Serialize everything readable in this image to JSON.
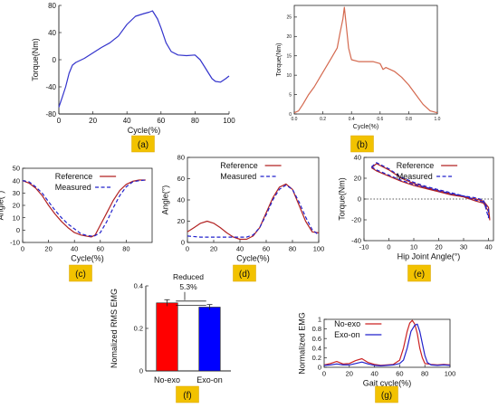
{
  "chart_data": [
    {
      "panel": "(a)",
      "type": "line",
      "xlabel": "Cycle(%)",
      "ylabel": "Torque(Nm)",
      "xlim": [
        0,
        100
      ],
      "ylim": [
        -80,
        80
      ],
      "xticks": [
        0,
        20,
        40,
        60,
        80,
        100
      ],
      "yticks": [
        -80,
        -40,
        0,
        40,
        80
      ],
      "series": [
        {
          "color": "#3333cc",
          "x": [
            0,
            2,
            4,
            6,
            8,
            10,
            15,
            20,
            25,
            30,
            35,
            40,
            45,
            50,
            53,
            55,
            56,
            58,
            60,
            63,
            66,
            70,
            75,
            80,
            83,
            86,
            88,
            90,
            92,
            95,
            98,
            100
          ],
          "y": [
            -70,
            -55,
            -40,
            -20,
            -8,
            -4,
            2,
            10,
            18,
            25,
            35,
            52,
            64,
            68,
            70,
            72,
            68,
            60,
            47,
            25,
            12,
            7,
            6,
            7,
            0,
            -12,
            -20,
            -28,
            -32,
            -33,
            -28,
            -24
          ]
        }
      ]
    },
    {
      "panel": "(b)",
      "type": "line",
      "xlabel": "Cycle(%)",
      "ylabel": "Torque(Nm)",
      "xlim": [
        0,
        1
      ],
      "ylim": [
        0,
        28
      ],
      "xticks": [
        "0.0",
        "0.2",
        "0.4",
        "0.6",
        "0.8",
        "1.0"
      ],
      "yticks": [
        0,
        5,
        10,
        15,
        20,
        25
      ],
      "series": [
        {
          "color": "#d4694f",
          "x": [
            0,
            0.03,
            0.06,
            0.1,
            0.14,
            0.18,
            0.22,
            0.26,
            0.3,
            0.32,
            0.34,
            0.35,
            0.36,
            0.38,
            0.4,
            0.45,
            0.5,
            0.55,
            0.6,
            0.62,
            0.64,
            0.7,
            0.75,
            0.8,
            0.85,
            0.9,
            0.95,
            1.0
          ],
          "y": [
            0.3,
            0.8,
            2.5,
            5,
            7,
            9.5,
            12,
            14.5,
            17,
            21,
            24.5,
            27.5,
            24,
            17,
            14,
            13.5,
            13.5,
            13.5,
            13,
            11.5,
            12,
            11,
            9.5,
            7.5,
            5,
            2.5,
            0.8,
            0.3
          ]
        }
      ]
    },
    {
      "panel": "(c)",
      "type": "line",
      "xlabel": "Cycle(%)",
      "ylabel": "Angle(°)",
      "xlim": [
        0,
        100
      ],
      "ylim": [
        -10,
        50
      ],
      "xticks": [
        0,
        20,
        40,
        60,
        80
      ],
      "yticks": [
        -10,
        0,
        10,
        20,
        30,
        40,
        50
      ],
      "series": [
        {
          "name": "Reference",
          "color": "#b22222",
          "dash": false,
          "x": [
            0,
            5,
            10,
            15,
            20,
            25,
            30,
            35,
            40,
            45,
            50,
            53,
            56,
            60,
            65,
            70,
            75,
            80,
            85,
            90,
            95
          ],
          "y": [
            40,
            38,
            34,
            28,
            20,
            13,
            7,
            2,
            -2,
            -4,
            -5,
            -5.5,
            -4,
            4,
            14,
            24,
            32,
            37,
            39.5,
            40.5,
            40.5
          ]
        },
        {
          "name": "Measured",
          "color": "#2222cc",
          "dash": true,
          "x": [
            0,
            5,
            10,
            15,
            20,
            25,
            30,
            35,
            40,
            45,
            50,
            55,
            60,
            65,
            70,
            75,
            80,
            85,
            90,
            95
          ],
          "y": [
            40,
            39,
            35,
            30,
            23,
            16,
            10,
            5,
            1,
            -3,
            -4.5,
            -5,
            -2,
            7,
            18,
            28,
            35,
            39,
            40,
            40.5
          ]
        }
      ]
    },
    {
      "panel": "(d)",
      "type": "line",
      "xlabel": "Cycle(%)",
      "ylabel": "Angle(°)",
      "xlim": [
        0,
        100
      ],
      "ylim": [
        0,
        80
      ],
      "xticks": [
        0,
        20,
        40,
        60,
        80,
        100
      ],
      "yticks": [
        0,
        20,
        40,
        60,
        80
      ],
      "series": [
        {
          "name": "Reference",
          "color": "#b22222",
          "dash": false,
          "x": [
            0,
            5,
            10,
            15,
            20,
            25,
            30,
            35,
            40,
            45,
            50,
            55,
            60,
            65,
            70,
            75,
            80,
            85,
            90,
            95,
            100
          ],
          "y": [
            10,
            14,
            18,
            20,
            18,
            14,
            9,
            5,
            3,
            3,
            6,
            14,
            28,
            42,
            52,
            55,
            50,
            35,
            20,
            10,
            9
          ]
        },
        {
          "name": "Measured",
          "color": "#2222cc",
          "dash": true,
          "x": [
            0,
            10,
            20,
            30,
            40,
            45,
            50,
            55,
            60,
            65,
            70,
            75,
            80,
            85,
            90,
            95,
            100
          ],
          "y": [
            6,
            5,
            5,
            5,
            5,
            5,
            7,
            14,
            26,
            40,
            50,
            54,
            50,
            38,
            24,
            12,
            7
          ]
        }
      ]
    },
    {
      "panel": "(e)",
      "type": "line",
      "xlabel": "Hip Joint Angle(°)",
      "ylabel": "Torque(Nm)",
      "xlim": [
        -10,
        42
      ],
      "ylim": [
        -40,
        40
      ],
      "xticks": [
        -10,
        0,
        10,
        20,
        30,
        40
      ],
      "yticks": [
        -40,
        -20,
        0,
        20,
        40
      ],
      "series": [
        {
          "name": "Reference",
          "color": "#b22222",
          "dash": false,
          "x": [
            -7,
            -5,
            0,
            5,
            10,
            15,
            20,
            25,
            30,
            35,
            38,
            40,
            40.5,
            40,
            38,
            35,
            30,
            25,
            20,
            15,
            10,
            5,
            0,
            -5,
            -7
          ],
          "y": [
            30,
            34,
            28,
            20,
            15,
            11,
            8,
            5,
            2,
            -2,
            -4,
            -12,
            -20,
            -8,
            -2,
            0,
            2,
            4,
            7,
            10,
            13,
            17,
            22,
            27,
            30
          ]
        },
        {
          "name": "Measured",
          "color": "#2222cc",
          "dash": true,
          "x": [
            -7,
            -5,
            0,
            5,
            10,
            15,
            20,
            25,
            30,
            35,
            38,
            40,
            40,
            38,
            35,
            30,
            25,
            20,
            15,
            10,
            5,
            0,
            -5,
            -7
          ],
          "y": [
            31,
            35,
            29,
            21,
            16,
            12,
            9,
            6,
            3,
            -1,
            -3,
            -10,
            -18,
            -1,
            1,
            3,
            5,
            8,
            11,
            14,
            18,
            23,
            28,
            31
          ]
        }
      ],
      "reference_line": {
        "y": 0,
        "style": "dotted"
      }
    },
    {
      "panel": "(f)",
      "type": "bar",
      "ylabel": "Nomalized RMS EMG",
      "categories": [
        "No-exo",
        "Exo-on"
      ],
      "values": [
        0.32,
        0.3
      ],
      "errors": [
        0.015,
        0.012
      ],
      "colors": [
        "#ff0000",
        "#0000ff"
      ],
      "ylim": [
        0,
        0.4
      ],
      "yticks": [
        "0",
        "0.2",
        "0.4"
      ],
      "annotation": {
        "line1": "Reduced",
        "line2": "5.3%"
      }
    },
    {
      "panel": "(g)",
      "type": "line",
      "xlabel": "Gait cycle(%)",
      "ylabel": "Normalized EMG",
      "xlim": [
        0,
        100
      ],
      "ylim": [
        0,
        1
      ],
      "xticks": [
        0,
        20,
        40,
        60,
        80,
        100
      ],
      "yticks": [
        "0",
        "0.2",
        "0.4",
        "0.6",
        "0.8",
        "1"
      ],
      "series": [
        {
          "name": "No-exo",
          "color": "#cc2222",
          "dash": false,
          "x": [
            0,
            5,
            10,
            15,
            20,
            25,
            30,
            35,
            40,
            45,
            50,
            55,
            60,
            63,
            66,
            68,
            70,
            72,
            74,
            76,
            78,
            80,
            85,
            90,
            95,
            100
          ],
          "y": [
            0.05,
            0.08,
            0.12,
            0.07,
            0.08,
            0.14,
            0.18,
            0.1,
            0.06,
            0.04,
            0.05,
            0.06,
            0.15,
            0.4,
            0.75,
            0.92,
            0.98,
            0.9,
            0.7,
            0.4,
            0.2,
            0.08,
            0.06,
            0.05,
            0.06,
            0.05
          ]
        },
        {
          "name": "Exo-on",
          "color": "#2222cc",
          "dash": false,
          "x": [
            0,
            5,
            10,
            15,
            20,
            25,
            30,
            35,
            40,
            45,
            50,
            55,
            60,
            63,
            66,
            69,
            72,
            74,
            76,
            78,
            80,
            82,
            85,
            90,
            95,
            100
          ],
          "y": [
            0.04,
            0.05,
            0.07,
            0.05,
            0.05,
            0.08,
            0.11,
            0.07,
            0.04,
            0.03,
            0.04,
            0.05,
            0.08,
            0.15,
            0.4,
            0.75,
            0.88,
            0.9,
            0.75,
            0.5,
            0.25,
            0.1,
            0.05,
            0.04,
            0.05,
            0.04
          ]
        }
      ]
    }
  ]
}
